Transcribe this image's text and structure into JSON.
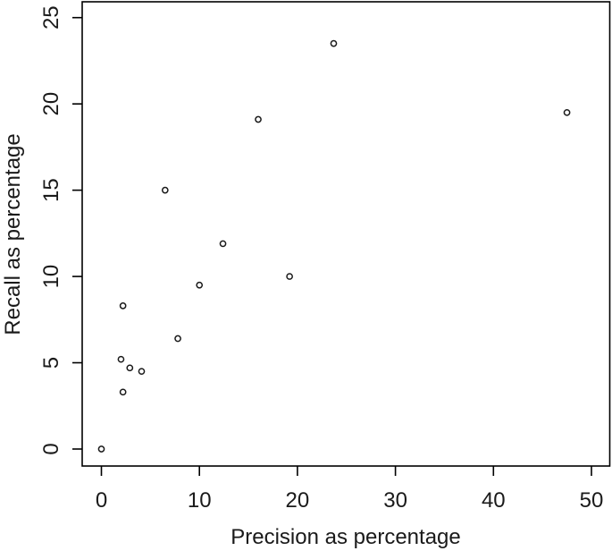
{
  "chart_data": {
    "type": "scatter",
    "title": "",
    "xlabel": "Precision as percentage",
    "ylabel": "Recall as percentage",
    "xlim": [
      0,
      50
    ],
    "ylim": [
      0,
      25
    ],
    "xticks": [
      0,
      10,
      20,
      30,
      40,
      50
    ],
    "yticks": [
      0,
      5,
      10,
      15,
      20,
      25
    ],
    "grid": false,
    "legend": false,
    "marker": "open-circle",
    "colors": {
      "marker_stroke": "#1a1a1a",
      "axis": "#000000",
      "background": "#ffffff"
    },
    "points": [
      {
        "x": 0.0,
        "y": 0.0
      },
      {
        "x": 2.0,
        "y": 5.2
      },
      {
        "x": 2.2,
        "y": 8.3
      },
      {
        "x": 2.2,
        "y": 3.3
      },
      {
        "x": 2.9,
        "y": 4.7
      },
      {
        "x": 4.1,
        "y": 4.5
      },
      {
        "x": 6.5,
        "y": 15.0
      },
      {
        "x": 7.8,
        "y": 6.4
      },
      {
        "x": 10.0,
        "y": 9.5
      },
      {
        "x": 12.4,
        "y": 11.9
      },
      {
        "x": 16.0,
        "y": 19.1
      },
      {
        "x": 19.2,
        "y": 10.0
      },
      {
        "x": 23.7,
        "y": 23.5
      },
      {
        "x": 47.5,
        "y": 19.5
      }
    ]
  }
}
